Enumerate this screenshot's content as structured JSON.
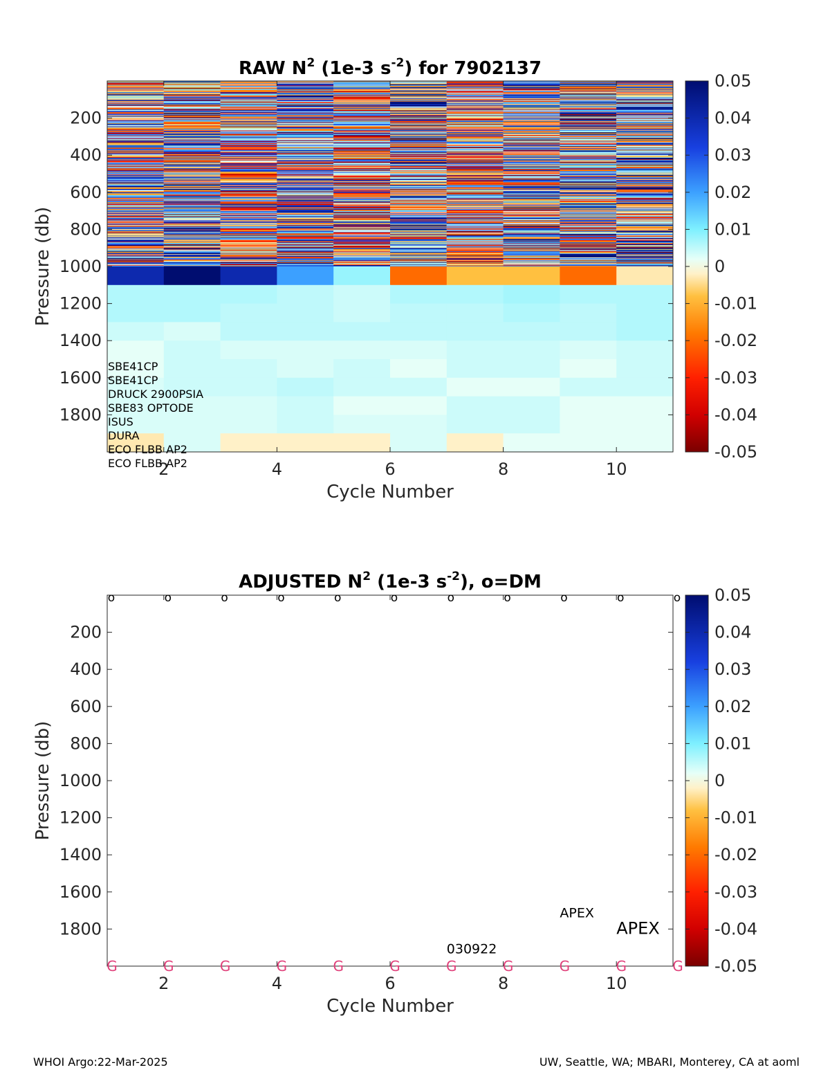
{
  "footer": {
    "left": "WHOI Argo:22-Mar-2025",
    "right": "UW, Seattle, WA; MBARI, Monterey, CA at aoml"
  },
  "chart_data": [
    {
      "type": "heatmap",
      "title_parts": [
        "RAW N",
        "2",
        " (1e-3 s",
        "-2",
        ") for 7902137"
      ],
      "xlabel": "Cycle Number",
      "ylabel": "Pressure (db)",
      "xlim": [
        1,
        11
      ],
      "ylim": [
        0,
        2000
      ],
      "y_reversed": true,
      "xticks": [
        2,
        4,
        6,
        8,
        10
      ],
      "yticks": [
        200,
        400,
        600,
        800,
        1000,
        1200,
        1400,
        1600,
        1800
      ],
      "colorbar": {
        "range": [
          -0.05,
          0.05
        ],
        "ticks": [
          "0.05",
          "0.04",
          "0.03",
          "0.02",
          "0.01",
          "0",
          "-0.01",
          "-0.02",
          "-0.03",
          "-0.04",
          "-0.05"
        ],
        "colormap": "jet-like diverging: dark red (-0.05) → red → orange → pale yellow (0) → cyan → blue → dark navy (0.05)"
      },
      "cycles": [
        1,
        2,
        3,
        4,
        5,
        6,
        7,
        8,
        9,
        10
      ],
      "deep_bins_db": [
        1000,
        1100,
        1200,
        1300,
        1400,
        1500,
        1600,
        1700,
        1800,
        1900
      ],
      "deep_values": [
        [
          0.04,
          0.05,
          0.04,
          0.02,
          0.008,
          -0.02,
          -0.008,
          -0.008,
          -0.02,
          -0.003
        ],
        [
          0.006,
          0.006,
          0.006,
          0.005,
          0.004,
          0.006,
          0.006,
          0.007,
          0.006,
          0.006
        ],
        [
          0.006,
          0.006,
          0.005,
          0.005,
          0.004,
          0.005,
          0.005,
          0.006,
          0.005,
          0.006
        ],
        [
          0.004,
          0.003,
          0.005,
          0.005,
          0.005,
          0.005,
          0.005,
          0.005,
          0.005,
          0.006
        ],
        [
          0.002,
          0.004,
          0.003,
          0.003,
          0.003,
          0.003,
          0.004,
          0.004,
          0.003,
          0.004
        ],
        [
          0.002,
          0.004,
          0.004,
          0.003,
          0.004,
          0.002,
          0.004,
          0.004,
          0.002,
          0.004
        ],
        [
          0.003,
          0.004,
          0.004,
          0.005,
          0.004,
          0.004,
          0.002,
          0.002,
          0.004,
          0.004
        ],
        [
          0.003,
          0.003,
          0.003,
          0.004,
          0.002,
          0.002,
          0.004,
          0.004,
          0.002,
          0.002
        ],
        [
          0.003,
          0.003,
          0.003,
          0.004,
          0.003,
          0.003,
          0.004,
          0.004,
          0.002,
          0.002
        ],
        [
          -0.003,
          0.003,
          -0.002,
          -0.002,
          -0.002,
          0.003,
          -0.002,
          0.002,
          0.002,
          0.002
        ]
      ],
      "upper_layer_note": "0-1000 db: fine vertical striping of values spanning -0.05 to 0.05 in every cycle",
      "sensor_labels": [
        "SBE41CP",
        "SBE41CP",
        "DRUCK 2900PSIA",
        "SBE83 OPTODE",
        "ISUS",
        "DURA",
        "ECO FLBB AP2",
        "ECO FLBB AP2"
      ]
    },
    {
      "type": "scatter",
      "title_parts": [
        "ADJUSTED N",
        "2",
        " (1e-3 s",
        "-2",
        "), o=DM"
      ],
      "xlabel": "Cycle Number",
      "ylabel": "Pressure (db)",
      "xlim": [
        1,
        11
      ],
      "ylim": [
        0,
        2000
      ],
      "y_reversed": true,
      "xticks": [
        2,
        4,
        6,
        8,
        10
      ],
      "yticks": [
        200,
        400,
        600,
        800,
        1000,
        1200,
        1400,
        1600,
        1800
      ],
      "colorbar": {
        "range": [
          -0.05,
          0.05
        ],
        "ticks": [
          "0.05",
          "0.04",
          "0.03",
          "0.02",
          "0.01",
          "0",
          "-0.01",
          "-0.02",
          "-0.03",
          "-0.04",
          "-0.05"
        ]
      },
      "dm_marker": "o",
      "dm_cycles": [
        1,
        2,
        3,
        4,
        5,
        6,
        7,
        8,
        9,
        10,
        11
      ],
      "g_marker": "G",
      "g_marker_color": "#e0407a",
      "g_cycles": [
        1,
        2,
        3,
        4,
        5,
        6,
        7,
        8,
        9,
        10,
        11
      ],
      "annotations": [
        {
          "text": "APEX",
          "x": 9,
          "y": 1710,
          "size": "small"
        },
        {
          "text": "APEX",
          "x": 10,
          "y": 1800,
          "size": "large"
        },
        {
          "text": "030922",
          "x": 7,
          "y": 1905,
          "size": "small"
        }
      ]
    }
  ]
}
